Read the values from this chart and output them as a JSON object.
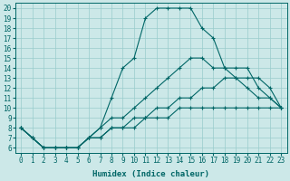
{
  "xlabel": "Humidex (Indice chaleur)",
  "bg_color": "#cce8e8",
  "grid_color": "#99cccc",
  "line_color": "#006666",
  "xlim": [
    -0.5,
    23.5
  ],
  "ylim": [
    5.5,
    20.5
  ],
  "xticks": [
    0,
    1,
    2,
    3,
    4,
    5,
    6,
    7,
    8,
    9,
    10,
    11,
    12,
    13,
    14,
    15,
    16,
    17,
    18,
    19,
    20,
    21,
    22,
    23
  ],
  "yticks": [
    6,
    7,
    8,
    9,
    10,
    11,
    12,
    13,
    14,
    15,
    16,
    17,
    18,
    19,
    20
  ],
  "curves": [
    {
      "x": [
        0,
        1,
        2,
        3,
        4,
        5,
        6,
        7,
        8,
        9,
        10,
        11,
        12,
        13,
        14,
        15,
        16,
        17,
        18,
        19,
        20,
        21,
        22,
        23
      ],
      "y": [
        8,
        7,
        6,
        6,
        6,
        6,
        7,
        8,
        11,
        14,
        15,
        19,
        20,
        20,
        20,
        20,
        18,
        17,
        14,
        13,
        12,
        11,
        11,
        10
      ]
    },
    {
      "x": [
        0,
        1,
        2,
        3,
        4,
        5,
        6,
        7,
        8,
        9,
        10,
        11,
        12,
        13,
        14,
        15,
        16,
        17,
        18,
        19,
        20,
        21,
        22,
        23
      ],
      "y": [
        8,
        7,
        6,
        6,
        6,
        6,
        7,
        8,
        9,
        9,
        10,
        11,
        12,
        13,
        14,
        15,
        15,
        14,
        14,
        14,
        14,
        12,
        11,
        10
      ]
    },
    {
      "x": [
        0,
        1,
        2,
        3,
        4,
        5,
        6,
        7,
        8,
        9,
        10,
        11,
        12,
        13,
        14,
        15,
        16,
        17,
        18,
        19,
        20,
        21,
        22,
        23
      ],
      "y": [
        8,
        7,
        6,
        6,
        6,
        6,
        7,
        7,
        8,
        8,
        9,
        9,
        10,
        10,
        11,
        11,
        12,
        12,
        13,
        13,
        13,
        13,
        12,
        10
      ]
    },
    {
      "x": [
        0,
        1,
        2,
        3,
        4,
        5,
        6,
        7,
        8,
        9,
        10,
        11,
        12,
        13,
        14,
        15,
        16,
        17,
        18,
        19,
        20,
        21,
        22,
        23
      ],
      "y": [
        8,
        7,
        6,
        6,
        6,
        6,
        7,
        7,
        8,
        8,
        8,
        9,
        9,
        9,
        10,
        10,
        10,
        10,
        10,
        10,
        10,
        10,
        10,
        10
      ]
    }
  ]
}
